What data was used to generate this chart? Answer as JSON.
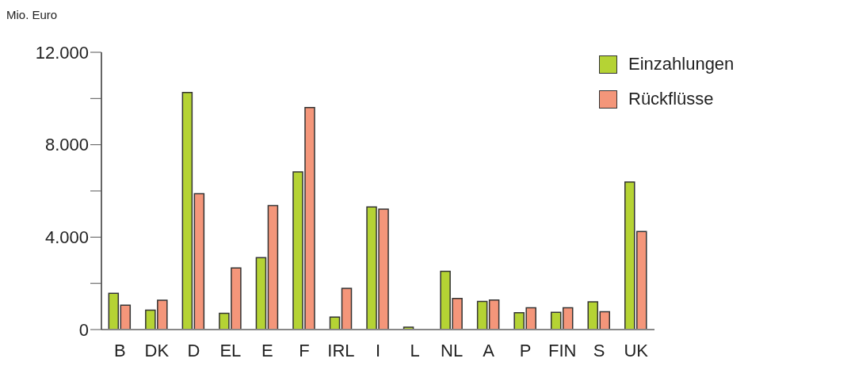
{
  "chart_data": {
    "type": "bar",
    "ylabel": "Mio. Euro",
    "categories": [
      "B",
      "DK",
      "D",
      "EL",
      "E",
      "F",
      "IRL",
      "I",
      "L",
      "NL",
      "A",
      "P",
      "FIN",
      "S",
      "UK"
    ],
    "series": [
      {
        "name": "Einzahlungen",
        "color": "#b5d334",
        "values": [
          1570,
          840,
          10260,
          700,
          3110,
          6820,
          540,
          5310,
          100,
          2520,
          1220,
          730,
          750,
          1200,
          6390
        ]
      },
      {
        "name": "Rückflüsse",
        "color": "#f4967a",
        "values": [
          1055,
          1270,
          5880,
          2670,
          5370,
          9610,
          1780,
          5210,
          null,
          1350,
          1280,
          940,
          940,
          770,
          4240
        ]
      }
    ],
    "ylim": [
      0,
      12000
    ],
    "yticks": [
      0,
      {
        "value": 2000,
        "label": null
      },
      {
        "value": 4000,
        "label": "4.000"
      },
      {
        "value": 6000,
        "label": null
      },
      {
        "value": 8000,
        "label": "8.000"
      },
      {
        "value": 10000,
        "label": null
      },
      {
        "value": 12000,
        "label": "12.000"
      }
    ],
    "grid": false,
    "legend": "top right"
  }
}
